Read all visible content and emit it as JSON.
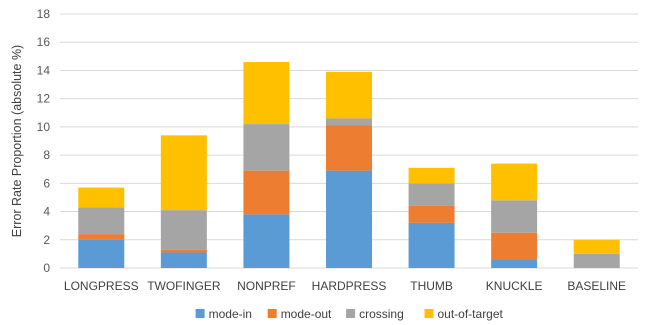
{
  "chart_data": {
    "type": "bar",
    "stacked": true,
    "title": "",
    "xlabel": "",
    "ylabel": "Error Rate Proportion (absolute %)",
    "ylim": [
      0,
      18
    ],
    "yticks": [
      0,
      2,
      4,
      6,
      8,
      10,
      12,
      14,
      16,
      18
    ],
    "grid": true,
    "legend_position": "bottom",
    "categories": [
      "LONGPRESS",
      "TWOFINGER",
      "NONPREF",
      "HARDPRESS",
      "THUMB",
      "KNUCKLE",
      "BASELINE"
    ],
    "series": [
      {
        "name": "mode-in",
        "color": "#5b9bd5",
        "values": [
          2.0,
          1.1,
          3.8,
          6.9,
          3.2,
          0.6,
          0.0
        ]
      },
      {
        "name": "mode-out",
        "color": "#ed7d31",
        "values": [
          0.4,
          0.2,
          3.1,
          3.2,
          1.2,
          1.9,
          0.0
        ]
      },
      {
        "name": "crossing",
        "color": "#a5a5a5",
        "values": [
          1.9,
          2.8,
          3.3,
          0.5,
          1.6,
          2.3,
          1.0
        ]
      },
      {
        "name": "out-of-target",
        "color": "#ffc000",
        "values": [
          1.4,
          5.3,
          4.4,
          3.3,
          1.1,
          2.6,
          1.0
        ]
      }
    ]
  }
}
